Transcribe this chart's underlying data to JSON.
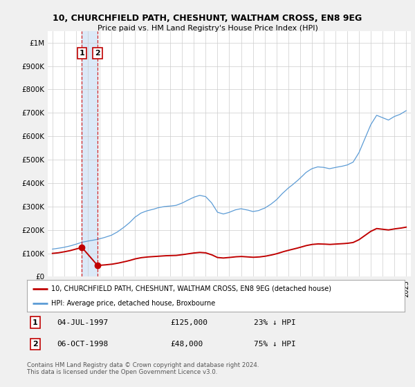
{
  "title": "10, CHURCHFIELD PATH, CHESHUNT, WALTHAM CROSS, EN8 9EG",
  "subtitle": "Price paid vs. HM Land Registry's House Price Index (HPI)",
  "legend_line1": "10, CHURCHFIELD PATH, CHESHUNT, WALTHAM CROSS, EN8 9EG (detached house)",
  "legend_line2": "HPI: Average price, detached house, Broxbourne",
  "ann1_date": "04-JUL-1997",
  "ann1_price_str": "£125,000",
  "ann1_note": "23% ↓ HPI",
  "ann1_x": 1997.5,
  "ann1_y": 125000,
  "ann2_date": "06-OCT-1998",
  "ann2_price_str": "£48,000",
  "ann2_note": "75% ↓ HPI",
  "ann2_x": 1998.83,
  "ann2_y": 48000,
  "footer": "Contains HM Land Registry data © Crown copyright and database right 2024.\nThis data is licensed under the Open Government Licence v3.0.",
  "hpi_color": "#5b9bd5",
  "price_color": "#c00000",
  "vline_color": "#cc0000",
  "span_color": "#dce9f7",
  "grid_color": "#cccccc",
  "fig_bg": "#f0f0f0",
  "plot_bg": "#ffffff",
  "legend_border": "#aaaaaa",
  "ylim": [
    0,
    1050000
  ],
  "xlim_start": 1994.6,
  "xlim_end": 2025.4,
  "hpi_points_x": [
    1995.0,
    1995.5,
    1996.0,
    1996.5,
    1997.0,
    1997.5,
    1998.0,
    1998.5,
    1999.0,
    1999.5,
    2000.0,
    2000.5,
    2001.0,
    2001.5,
    2002.0,
    2002.5,
    2003.0,
    2003.5,
    2004.0,
    2004.5,
    2005.0,
    2005.5,
    2006.0,
    2006.5,
    2007.0,
    2007.5,
    2008.0,
    2008.5,
    2009.0,
    2009.5,
    2010.0,
    2010.5,
    2011.0,
    2011.5,
    2012.0,
    2012.5,
    2013.0,
    2013.5,
    2014.0,
    2014.5,
    2015.0,
    2015.5,
    2016.0,
    2016.5,
    2017.0,
    2017.5,
    2018.0,
    2018.5,
    2019.0,
    2019.5,
    2020.0,
    2020.5,
    2021.0,
    2021.5,
    2022.0,
    2022.5,
    2023.0,
    2023.5,
    2024.0,
    2024.5,
    2025.0
  ],
  "hpi_points_y": [
    118000,
    121000,
    126000,
    132000,
    140000,
    148000,
    153000,
    157000,
    163000,
    170000,
    178000,
    192000,
    210000,
    230000,
    255000,
    272000,
    282000,
    288000,
    295000,
    300000,
    302000,
    305000,
    315000,
    328000,
    340000,
    348000,
    342000,
    315000,
    275000,
    268000,
    275000,
    285000,
    290000,
    285000,
    278000,
    282000,
    292000,
    308000,
    328000,
    355000,
    378000,
    398000,
    420000,
    445000,
    462000,
    470000,
    468000,
    462000,
    468000,
    472000,
    478000,
    490000,
    530000,
    590000,
    650000,
    690000,
    680000,
    670000,
    685000,
    695000,
    710000
  ],
  "hpi_noise_seed": 42
}
